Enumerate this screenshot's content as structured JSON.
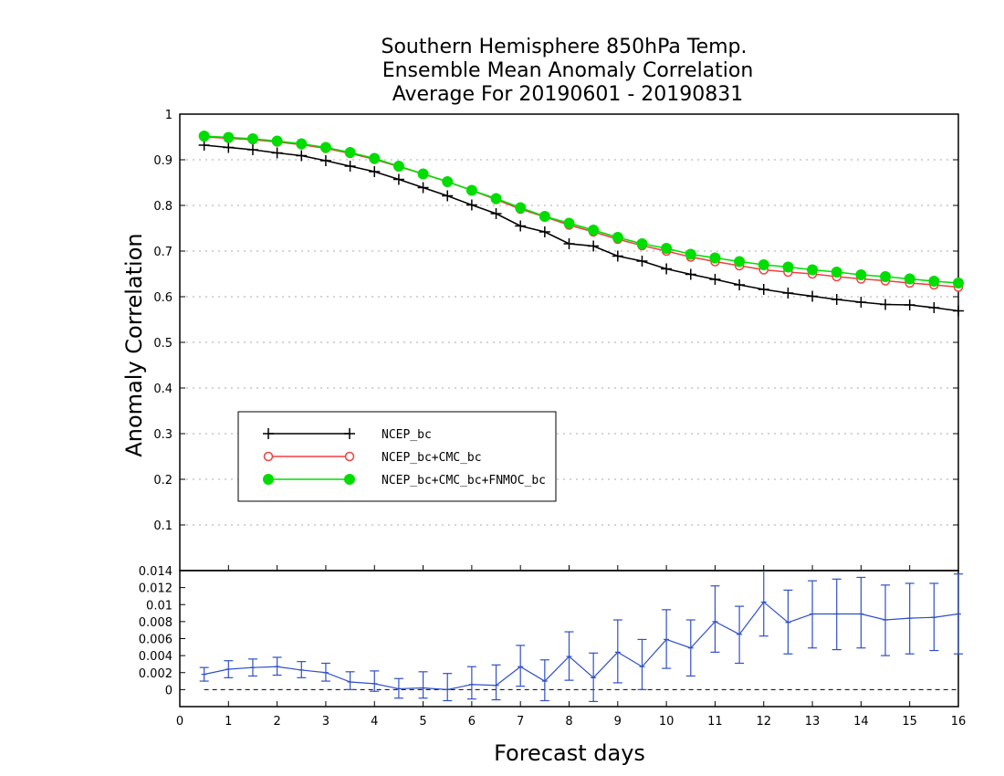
{
  "chart_data": {
    "type": "line",
    "title_lines": [
      "Southern Hemisphere 850hPa Temp.",
      "Ensemble Mean Anomaly Correlation",
      "Average For 20190601 - 20190831"
    ],
    "xlabel": "Forecast days",
    "ylabel": "Anomaly Correlation",
    "xlim": [
      0,
      16
    ],
    "ylim": [
      0,
      1
    ],
    "x_ticks": [
      "0",
      "1",
      "2",
      "3",
      "4",
      "5",
      "6",
      "7",
      "8",
      "9",
      "10",
      "11",
      "12",
      "13",
      "14",
      "15",
      "16"
    ],
    "y_ticks": [
      "0.1",
      "0.2",
      "0.3",
      "0.4",
      "0.5",
      "0.6",
      "0.7",
      "0.8",
      "0.9",
      "1"
    ],
    "grid": "horizontal dotted",
    "legend_position": "lower-left",
    "x": [
      0.5,
      1,
      1.5,
      2,
      2.5,
      3,
      3.5,
      4,
      4.5,
      5,
      5.5,
      6,
      6.5,
      7,
      7.5,
      8,
      8.5,
      9,
      9.5,
      10,
      10.5,
      11,
      11.5,
      12,
      12.5,
      13,
      13.5,
      14,
      14.5,
      15,
      15.5,
      16
    ],
    "series": [
      {
        "name": "NCEP_bc",
        "color": "#000000",
        "marker": "plus",
        "values": [
          0.932,
          0.927,
          0.922,
          0.915,
          0.909,
          0.898,
          0.886,
          0.874,
          0.857,
          0.839,
          0.821,
          0.801,
          0.782,
          0.755,
          0.742,
          0.716,
          0.711,
          0.689,
          0.678,
          0.661,
          0.649,
          0.638,
          0.626,
          0.616,
          0.608,
          0.601,
          0.594,
          0.588,
          0.583,
          0.582,
          0.576,
          0.569
        ]
      },
      {
        "name": "NCEP_bc+CMC_bc",
        "color": "#f04040",
        "marker": "open-circle",
        "values": [
          0.95,
          0.947,
          0.944,
          0.939,
          0.933,
          0.925,
          0.914,
          0.901,
          0.885,
          0.869,
          0.852,
          0.833,
          0.813,
          0.792,
          0.775,
          0.757,
          0.742,
          0.726,
          0.712,
          0.7,
          0.687,
          0.677,
          0.668,
          0.659,
          0.654,
          0.65,
          0.644,
          0.639,
          0.635,
          0.63,
          0.626,
          0.621
        ]
      },
      {
        "name": "NCEP_bc+CMC_bc+FNMOC_bc",
        "color": "#00dd00",
        "marker": "filled-circle",
        "values": [
          0.952,
          0.949,
          0.946,
          0.941,
          0.935,
          0.927,
          0.916,
          0.903,
          0.886,
          0.869,
          0.852,
          0.833,
          0.815,
          0.795,
          0.776,
          0.761,
          0.746,
          0.73,
          0.716,
          0.706,
          0.693,
          0.685,
          0.677,
          0.67,
          0.665,
          0.659,
          0.654,
          0.648,
          0.644,
          0.639,
          0.634,
          0.63
        ]
      }
    ],
    "difference_panel": {
      "type": "line-with-errorbars",
      "color": "#3050c8",
      "ylim": [
        -0.002,
        0.014
      ],
      "y_ticks": [
        "0",
        "0.002",
        "0.004",
        "0.006",
        "0.008",
        "0.01",
        "0.012",
        "0.014"
      ],
      "zero_line": "dashed",
      "values": [
        0.0018,
        0.0024,
        0.0026,
        0.0027,
        0.0023,
        0.002,
        0.0009,
        0.0007,
        0.0001,
        0.0002,
        0.0,
        0.0006,
        0.0005,
        0.0027,
        0.001,
        0.0039,
        0.0014,
        0.0044,
        0.0027,
        0.0059,
        0.0049,
        0.008,
        0.0065,
        0.0103,
        0.0079,
        0.0089,
        0.0089,
        0.0089,
        0.0082,
        0.0084,
        0.0085,
        0.0089
      ],
      "error_low": [
        0.001,
        0.0014,
        0.0016,
        0.0017,
        0.0014,
        0.001,
        0.0,
        -0.0002,
        -0.001,
        -0.001,
        -0.0013,
        -0.0011,
        -0.0012,
        0.0004,
        -0.0013,
        0.0011,
        -0.0014,
        0.0008,
        0.0,
        0.0025,
        0.0016,
        0.0044,
        0.0031,
        0.0063,
        0.0042,
        0.0049,
        0.0047,
        0.0049,
        0.004,
        0.0042,
        0.0046,
        0.0042
      ],
      "error_high": [
        0.0026,
        0.0034,
        0.0036,
        0.0038,
        0.0033,
        0.0031,
        0.0021,
        0.0022,
        0.0013,
        0.0021,
        0.0019,
        0.0027,
        0.0029,
        0.0052,
        0.0035,
        0.0068,
        0.0043,
        0.0082,
        0.0059,
        0.0094,
        0.0082,
        0.0122,
        0.0098,
        0.0142,
        0.0117,
        0.0128,
        0.013,
        0.0132,
        0.0123,
        0.0125,
        0.0125,
        0.0136
      ]
    }
  }
}
